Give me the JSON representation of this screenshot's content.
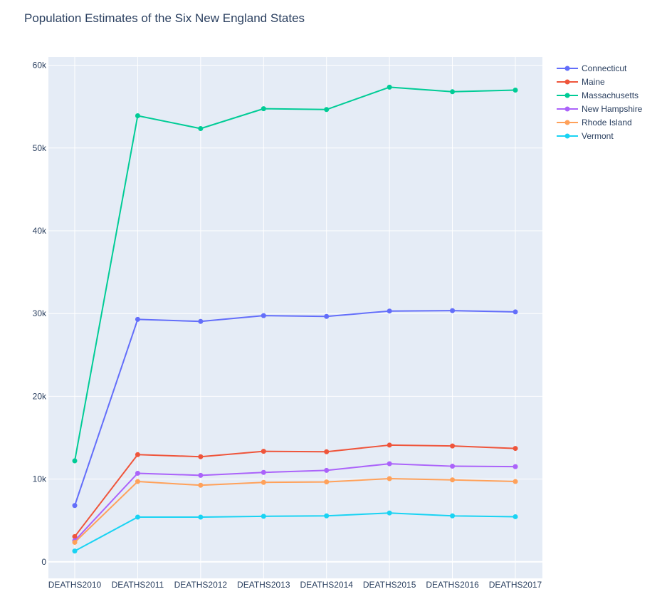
{
  "chart_data": {
    "type": "line",
    "title": "Population Estimates of the Six New England States",
    "xlabel": "",
    "ylabel": "",
    "categories": [
      "DEATHS2010",
      "DEATHS2011",
      "DEATHS2012",
      "DEATHS2013",
      "DEATHS2014",
      "DEATHS2015",
      "DEATHS2016",
      "DEATHS2017"
    ],
    "ylim": [
      -2000,
      61000
    ],
    "yticks": [
      0,
      10000,
      20000,
      30000,
      40000,
      50000,
      60000
    ],
    "ytick_labels": [
      "0",
      "10k",
      "20k",
      "30k",
      "40k",
      "50k",
      "60k"
    ],
    "legend_position": "top-right",
    "background": "#e5ecf6",
    "series": [
      {
        "name": "Connecticut",
        "color": "#636efa",
        "values": [
          6800,
          29300,
          29050,
          29750,
          29650,
          30300,
          30350,
          30200
        ]
      },
      {
        "name": "Maine",
        "color": "#ef553b",
        "values": [
          3050,
          12950,
          12700,
          13350,
          13300,
          14100,
          14000,
          13700
        ]
      },
      {
        "name": "Massachusetts",
        "color": "#00cc96",
        "values": [
          12200,
          53900,
          52350,
          54750,
          54650,
          57350,
          56800,
          57000
        ]
      },
      {
        "name": "New Hampshire",
        "color": "#ab63fa",
        "values": [
          2550,
          10700,
          10450,
          10800,
          11050,
          11850,
          11550,
          11500
        ]
      },
      {
        "name": "Rhode Island",
        "color": "#ffa15a",
        "values": [
          2350,
          9700,
          9250,
          9600,
          9650,
          10050,
          9900,
          9700
        ]
      },
      {
        "name": "Vermont",
        "color": "#19d3f3",
        "values": [
          1300,
          5400,
          5400,
          5500,
          5550,
          5900,
          5550,
          5450
        ]
      }
    ]
  }
}
